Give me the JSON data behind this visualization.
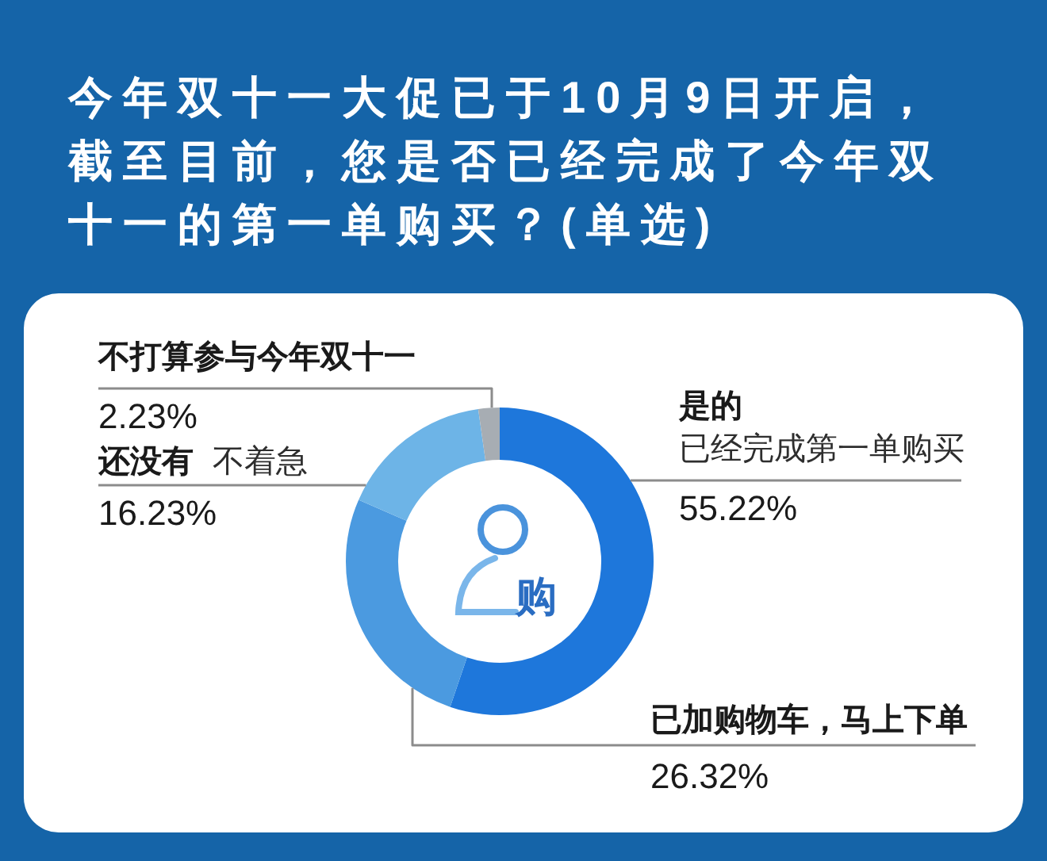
{
  "chart_data": {
    "type": "donut",
    "title": "今年双十一大促已于10月9日开启，截至目前，您是否已经完成了今年双十一的第一单购买？(单选)",
    "categories": [
      "是的已经完成第一单购买",
      "已加购物车，马上下单",
      "还没有 不着急",
      "不打算参与今年双十一"
    ],
    "values": [
      55.22,
      26.32,
      16.23,
      2.23
    ],
    "colors": [
      "#1e77db",
      "#4b9ae0",
      "#6db4e7",
      "#a7adb3"
    ],
    "value_labels": [
      "55.22%",
      "26.32%",
      "16.23%",
      "2.23%"
    ],
    "annotations": [
      "购"
    ]
  }
}
